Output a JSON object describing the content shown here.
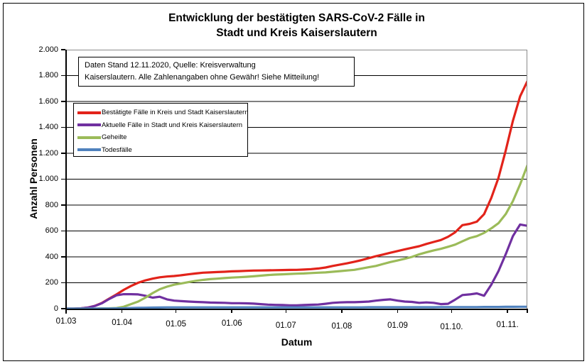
{
  "title": {
    "line1": "Entwicklung der bestätigten SARS-CoV-2 Fälle in",
    "line2": "Stadt und Kreis Kaiserslautern"
  },
  "note": {
    "line1": "Daten Stand 12.11.2020, Quelle: Kreisverwaltung",
    "line2": "Kaiserslautern. Alle Zahlenangaben ohne Gewähr! Siehe Mitteilung!"
  },
  "axes": {
    "x_title": "Datum",
    "y_title": "Anzahl Personen"
  },
  "chart_data": {
    "type": "line",
    "title": "Entwicklung der bestätigten SARS-CoV-2 Fälle in Stadt und Kreis Kaiserslautern",
    "xlabel": "Datum",
    "ylabel": "Anzahl Personen",
    "ylim": [
      0,
      2000
    ],
    "xlim_days": [
      0,
      256
    ],
    "grid": "horizontal",
    "legend_position": "upper-left-inside",
    "sampling": "values sampled every 4 days from 01.03.2020 (65 points, last point = 12.11.2020)",
    "step_days": 4,
    "y_ticks": [
      {
        "label": "0",
        "value": 0
      },
      {
        "label": "200",
        "value": 200
      },
      {
        "label": "400",
        "value": 400
      },
      {
        "label": "600",
        "value": 600
      },
      {
        "label": "800",
        "value": 800
      },
      {
        "label": "1.000",
        "value": 1000
      },
      {
        "label": "1.200",
        "value": 1200
      },
      {
        "label": "1.400",
        "value": 1400
      },
      {
        "label": "1.600",
        "value": 1600
      },
      {
        "label": "1.800",
        "value": 1800
      },
      {
        "label": "2.000",
        "value": 2000
      }
    ],
    "x_ticks": [
      {
        "label": "01.03",
        "day": 0
      },
      {
        "label": "01.04",
        "day": 31
      },
      {
        "label": "01.05",
        "day": 61
      },
      {
        "label": "01.06",
        "day": 92
      },
      {
        "label": "01.07",
        "day": 122
      },
      {
        "label": "01.08",
        "day": 153
      },
      {
        "label": "01.09",
        "day": 184
      },
      {
        "label": "01.10.",
        "day": 214
      },
      {
        "label": "01.11.",
        "day": 245
      }
    ],
    "series": [
      {
        "name": "Bestätigte Fälle in Kreis und Stadt Kaiserslautern",
        "color": "#E2231A",
        "values": [
          0,
          0,
          2,
          8,
          22,
          45,
          78,
          110,
          145,
          175,
          200,
          218,
          232,
          242,
          248,
          252,
          258,
          265,
          272,
          278,
          280,
          283,
          285,
          288,
          290,
          292,
          294,
          295,
          296,
          297,
          298,
          299,
          300,
          302,
          305,
          310,
          318,
          330,
          340,
          350,
          362,
          375,
          390,
          405,
          418,
          432,
          445,
          458,
          470,
          482,
          500,
          515,
          530,
          555,
          590,
          645,
          655,
          672,
          730,
          855,
          1010,
          1220,
          1450,
          1640,
          1755
        ]
      },
      {
        "name": "Aktuelle Fälle in Stadt und Kreis Kaiserslautern",
        "color": "#7030A0",
        "values": [
          0,
          0,
          2,
          8,
          21,
          42,
          75,
          103,
          112,
          112,
          110,
          100,
          85,
          92,
          72,
          62,
          58,
          55,
          52,
          50,
          47,
          46,
          45,
          42,
          42,
          41,
          39,
          35,
          31,
          29,
          28,
          26,
          25,
          28,
          30,
          32,
          38,
          45,
          48,
          50,
          50,
          52,
          55,
          62,
          68,
          72,
          62,
          55,
          52,
          45,
          48,
          45,
          35,
          38,
          70,
          105,
          110,
          118,
          100,
          185,
          290,
          420,
          560,
          650,
          640
        ]
      },
      {
        "name": "Geheilte",
        "color": "#9BBB59",
        "values": [
          0,
          0,
          0,
          0,
          0,
          2,
          3,
          5,
          15,
          35,
          55,
          85,
          120,
          150,
          170,
          185,
          195,
          205,
          215,
          222,
          228,
          232,
          236,
          240,
          243,
          246,
          250,
          255,
          260,
          263,
          265,
          268,
          270,
          272,
          275,
          278,
          280,
          285,
          290,
          295,
          300,
          310,
          320,
          330,
          345,
          360,
          372,
          385,
          400,
          420,
          435,
          450,
          462,
          478,
          495,
          520,
          545,
          560,
          585,
          620,
          660,
          730,
          830,
          960,
          1105
        ]
      },
      {
        "name": "Todesfälle",
        "color": "#4F81BD",
        "values": [
          0,
          0,
          0,
          0,
          0,
          1,
          1,
          2,
          3,
          5,
          6,
          7,
          8,
          9,
          10,
          10,
          10,
          10,
          10,
          10,
          10,
          10,
          10,
          10,
          10,
          10,
          10,
          10,
          10,
          10,
          10,
          10,
          10,
          10,
          10,
          10,
          10,
          10,
          10,
          10,
          10,
          10,
          11,
          11,
          11,
          11,
          11,
          11,
          11,
          11,
          11,
          11,
          12,
          12,
          12,
          12,
          12,
          12,
          13,
          13,
          13,
          14,
          14,
          15,
          15
        ]
      }
    ]
  }
}
